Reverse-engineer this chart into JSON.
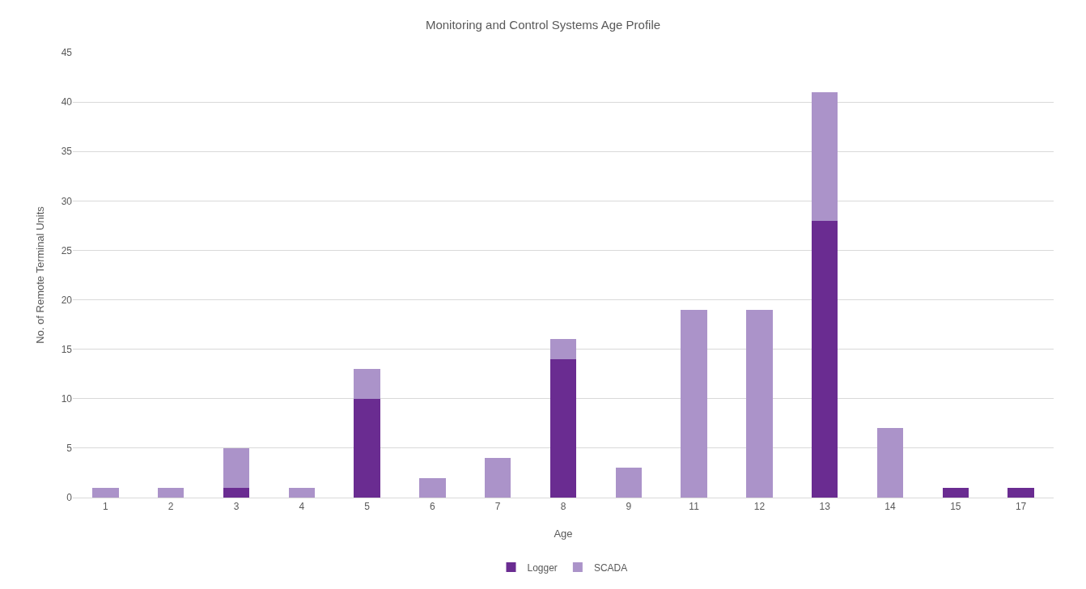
{
  "chart_data": {
    "type": "bar",
    "title": "Monitoring and Control Systems Age Profile",
    "xlabel": "Age",
    "ylabel": "No. of Remote Terminal Units",
    "categories": [
      "1",
      "2",
      "3",
      "4",
      "5",
      "6",
      "7",
      "8",
      "9",
      "11",
      "12",
      "13",
      "14",
      "15",
      "17"
    ],
    "series": [
      {
        "name": "Logger",
        "color": "#6a2c91",
        "values": [
          0,
          0,
          1,
          0,
          10,
          0,
          0,
          14,
          0,
          0,
          0,
          28,
          0,
          1,
          1
        ]
      },
      {
        "name": "SCADA",
        "color": "#ab93c9",
        "values": [
          1,
          1,
          4,
          1,
          3,
          2,
          4,
          2,
          3,
          19,
          19,
          13,
          7,
          0,
          0
        ]
      }
    ],
    "stacked": true,
    "ylim": [
      0,
      45
    ],
    "yticks": [
      0,
      5,
      10,
      15,
      20,
      25,
      30,
      35,
      40,
      45
    ],
    "grid": "y",
    "legend": "bottom"
  }
}
